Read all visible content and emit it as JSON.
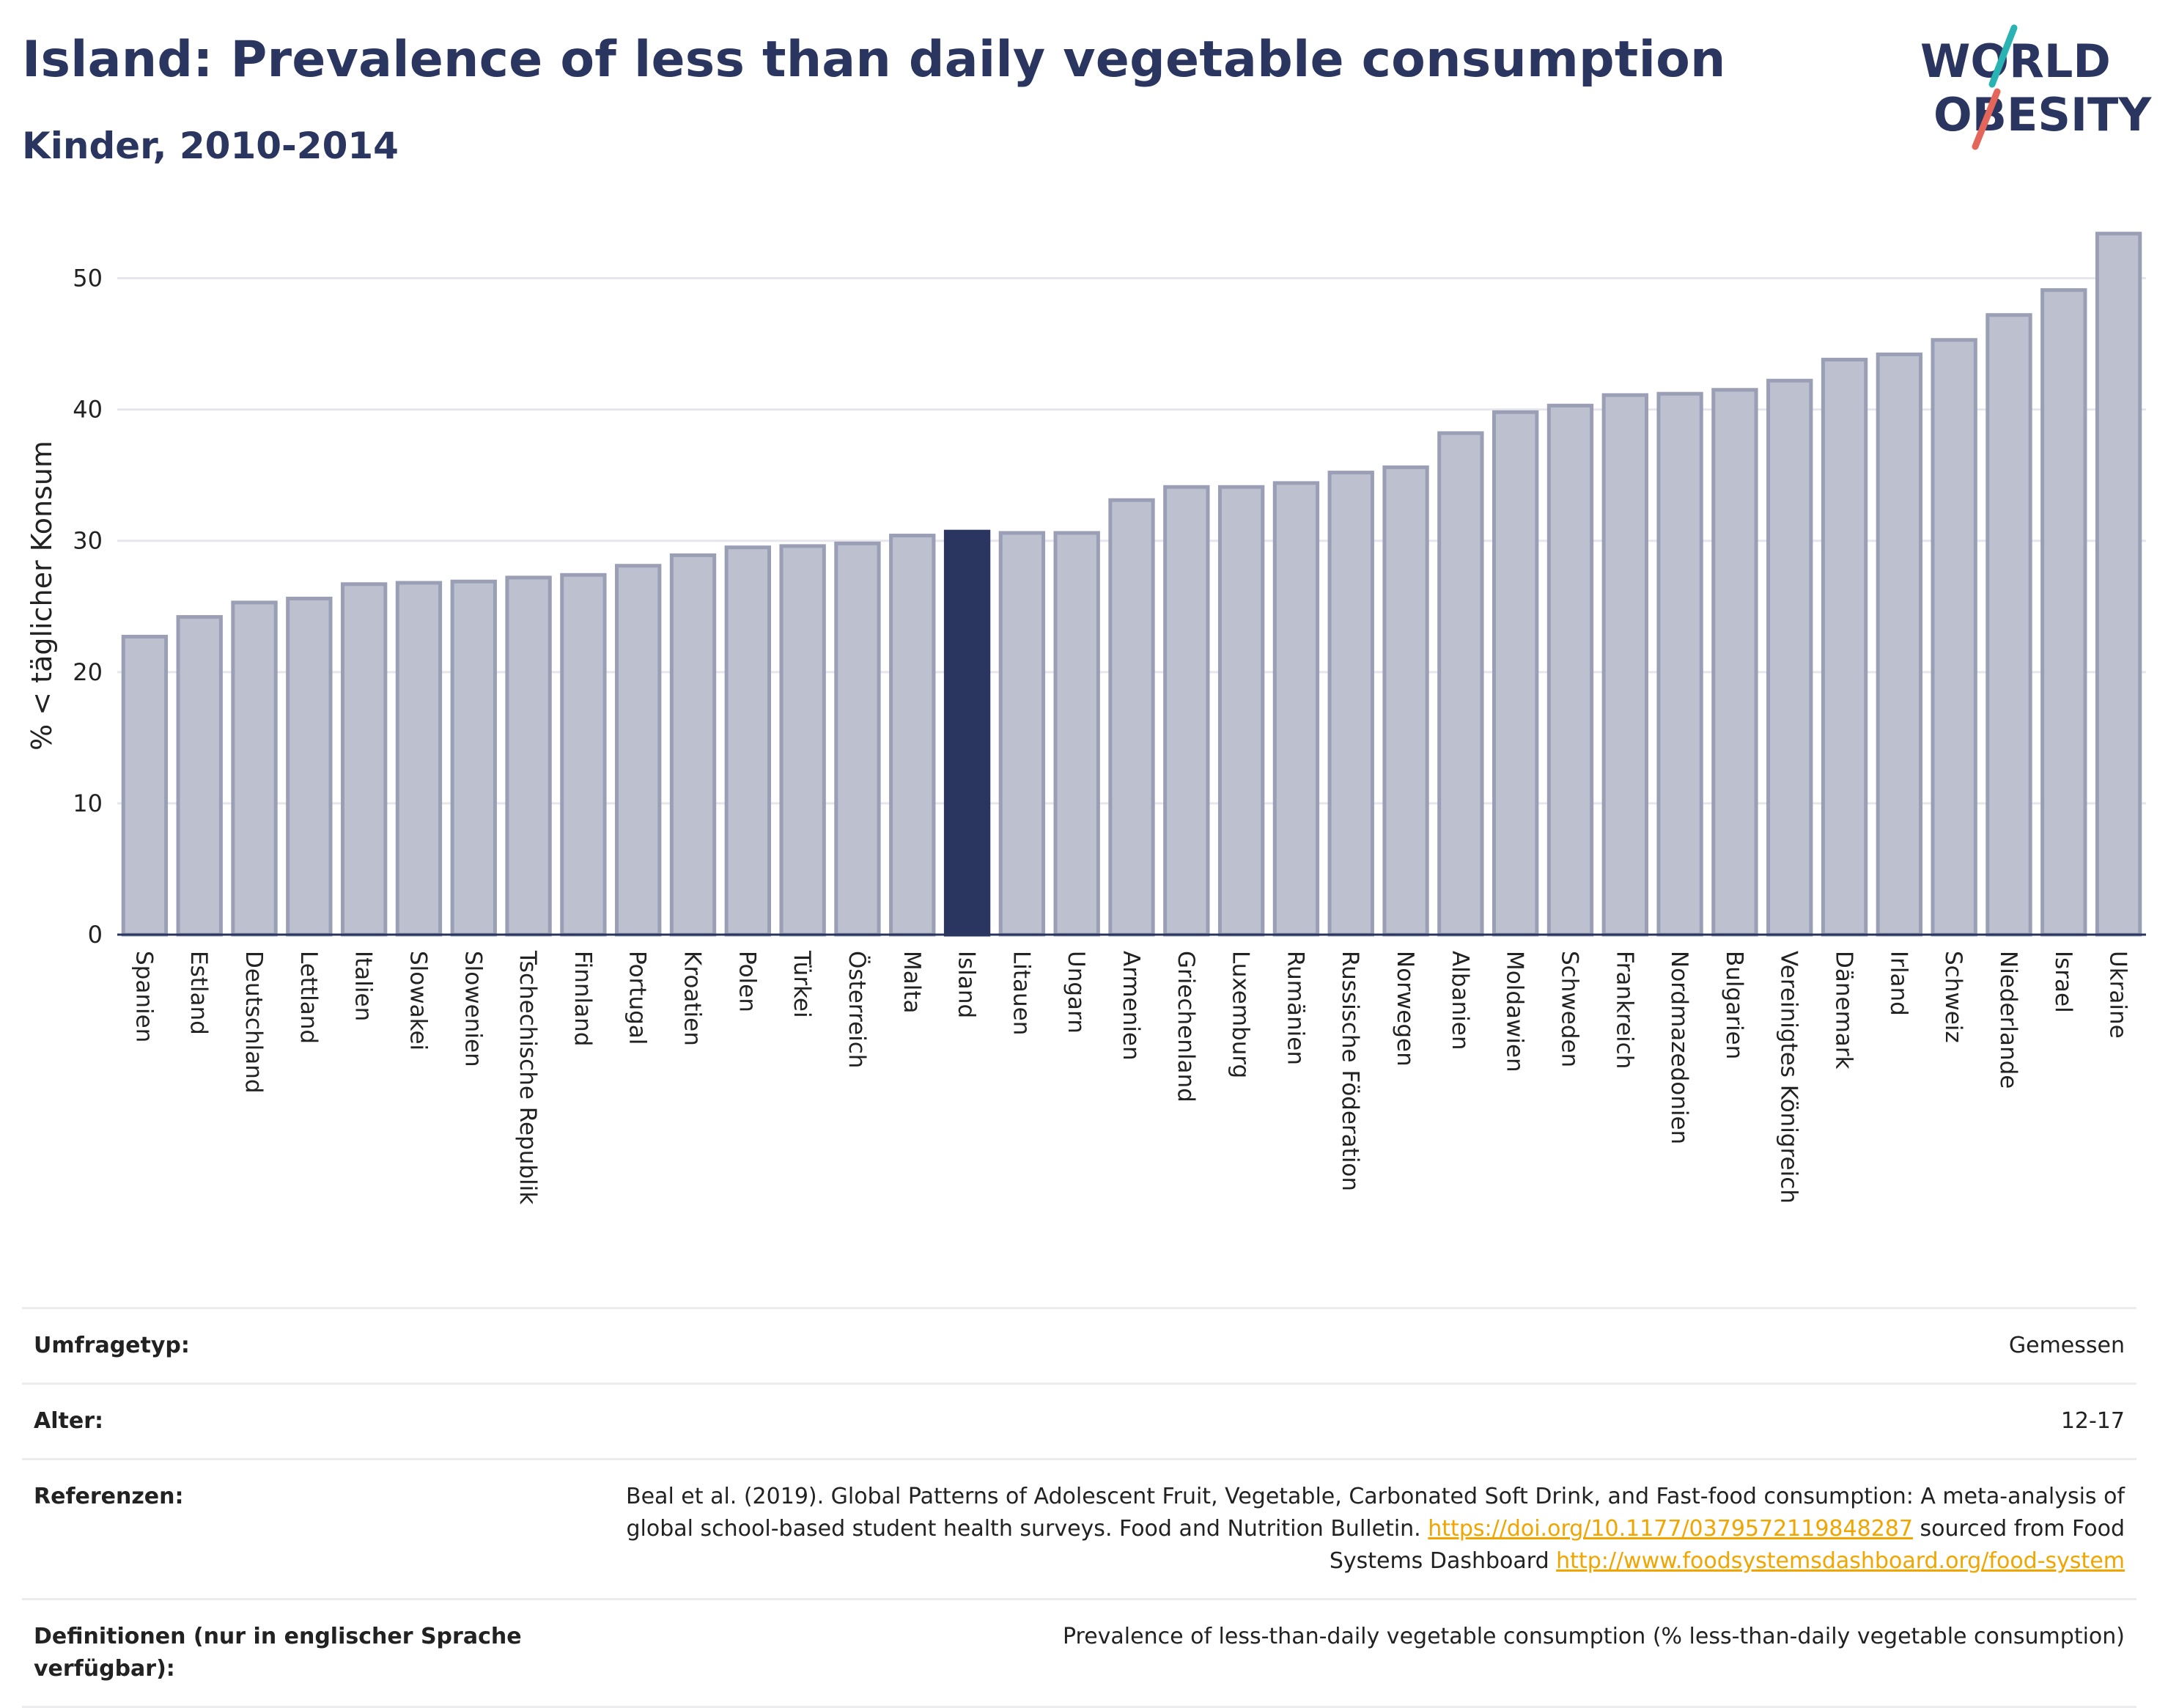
{
  "title": "Island: Prevalence of less than daily vegetable consumption",
  "subtitle": "Kinder, 2010-2014",
  "logo": {
    "line1": "WORLD",
    "line2": "OBESITY",
    "accent_colors": [
      "#2ab3b3",
      "#e4655a"
    ]
  },
  "colors": {
    "bar": "#bcc0cf",
    "bar_edge": "#9a9fb5",
    "highlight": "#2a3560",
    "grid": "#e6e6ec"
  },
  "chart_data": {
    "type": "bar",
    "ylabel": "% < täglicher Konsum",
    "ylim": [
      0,
      55
    ],
    "yticks": [
      0,
      10,
      20,
      30,
      40,
      50
    ],
    "grid": true,
    "highlight": "Island",
    "categories": [
      "Spanien",
      "Estland",
      "Deutschland",
      "Lettland",
      "Italien",
      "Slowakei",
      "Slowenien",
      "Tschechische Republik",
      "Finnland",
      "Portugal",
      "Kroatien",
      "Polen",
      "Türkei",
      "Österreich",
      "Malta",
      "Island",
      "Litauen",
      "Ungarn",
      "Armenien",
      "Griechenland",
      "Luxemburg",
      "Rumänien",
      "Russische Föderation",
      "Norwegen",
      "Albanien",
      "Moldawien",
      "Schweden",
      "Frankreich",
      "Nordmazedonien",
      "Bulgarien",
      "Vereinigtes Königreich",
      "Dänemark",
      "Irland",
      "Schweiz",
      "Niederlande",
      "Israel",
      "Ukraine"
    ],
    "values": [
      22.7,
      24.2,
      25.3,
      25.6,
      26.7,
      26.8,
      26.9,
      27.2,
      27.4,
      28.1,
      28.9,
      29.5,
      29.6,
      29.8,
      30.4,
      30.7,
      30.6,
      30.6,
      33.1,
      34.1,
      34.1,
      34.4,
      35.2,
      35.6,
      38.2,
      39.8,
      40.3,
      41.1,
      41.2,
      41.5,
      42.2,
      43.8,
      44.2,
      45.3,
      47.2,
      49.1,
      53.4
    ]
  },
  "info": [
    {
      "key": "Umfragetyp:",
      "value": "Gemessen"
    },
    {
      "key": "Alter:",
      "value": "12-17"
    },
    {
      "key": "Referenzen:",
      "value_pre": "Beal et al. (2019). Global Patterns of Adolescent Fruit, Vegetable, Carbonated Soft Drink, and Fast-food consumption: A meta-analysis of global school-based student health surveys. Food and Nutrition Bulletin.",
      "link1": "https://doi.org/10.1177/0379572119848287",
      "value_mid": "sourced from Food Systems Dashboard",
      "link2": "http://www.foodsystemsdashboard.org/food-system"
    },
    {
      "key": "Definitionen (nur in englischer Sprache verfügbar):",
      "value": "Prevalence of less-than-daily vegetable consumption (% less-than-daily vegetable consumption)"
    }
  ]
}
